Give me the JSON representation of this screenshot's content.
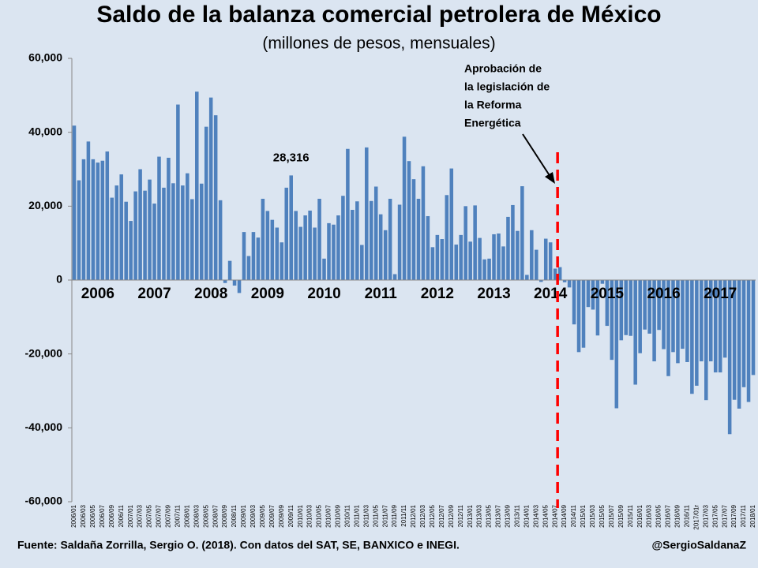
{
  "chart_data": {
    "type": "bar",
    "title": "Saldo de la balanza comercial petrolera de México",
    "subtitle": "(millones de pesos, mensuales)",
    "categories": [
      "2006/01",
      null,
      "2006/03",
      null,
      "2006/05",
      null,
      "2006/07",
      null,
      "2006/09",
      null,
      "2006/11",
      null,
      "2007/01",
      null,
      "2007/03",
      null,
      "2007/05",
      null,
      "2007/07",
      null,
      "2007/09",
      null,
      "2007/11",
      null,
      "2008/01",
      null,
      "2008/03",
      null,
      "2008/05",
      null,
      "2008/07",
      null,
      "2008/09",
      null,
      "2008/11",
      null,
      "2009/01",
      null,
      "2009/03",
      null,
      "2009/05",
      null,
      "2009/07",
      null,
      "2009/09",
      null,
      "2009/11",
      null,
      "2010/01",
      null,
      "2010/03",
      null,
      "2010/05",
      null,
      "2010/07",
      null,
      "2010/09",
      null,
      "2010/11",
      null,
      "2011/01",
      null,
      "2011/03",
      null,
      "2011/05",
      null,
      "2011/07",
      null,
      "2011/09",
      null,
      "2011/11",
      null,
      "2012/01",
      null,
      "2012/03",
      null,
      "2012/05",
      null,
      "2012/07",
      null,
      "2012/09",
      null,
      "2012/11",
      null,
      "2013/01",
      null,
      "2013/03",
      null,
      "2013/05",
      null,
      "2013/07",
      null,
      "2013/09",
      null,
      "2013/11",
      null,
      "2014/01",
      null,
      "2014/03",
      null,
      "2014/05",
      null,
      "2014/07",
      null,
      "2014/09",
      null,
      "2014/11",
      null,
      "2015/01",
      null,
      "2015/03",
      null,
      "2015/05",
      null,
      "2015/07",
      null,
      "2015/09",
      null,
      "2015/11",
      null,
      "2016/01",
      null,
      "2016/03",
      null,
      "2016/05",
      null,
      "2016/07",
      null,
      "2016/09",
      null,
      "2016/11",
      null,
      "2017/01r",
      null,
      "2017/03",
      null,
      "2017/05",
      null,
      "2017/07",
      null,
      "2017/09",
      null,
      "2017/11",
      null,
      "2018/01"
    ],
    "values": [
      41800,
      27000,
      32700,
      37500,
      32700,
      31800,
      32300,
      34800,
      22300,
      25600,
      28600,
      21200,
      16000,
      24000,
      30000,
      24200,
      27200,
      20700,
      33400,
      25000,
      33100,
      26200,
      47500,
      25600,
      28900,
      21900,
      51000,
      26100,
      41500,
      49400,
      44600,
      21600,
      -800,
      5200,
      -1500,
      -3500,
      13000,
      6500,
      13000,
      11500,
      22000,
      18700,
      16300,
      14200,
      10200,
      25000,
      28316,
      18700,
      14400,
      17500,
      18800,
      14200,
      22000,
      5800,
      15400,
      15000,
      17500,
      22800,
      35500,
      19000,
      21300,
      9500,
      35900,
      21400,
      25300,
      17800,
      13500,
      22000,
      1600,
      20400,
      38800,
      32200,
      27300,
      22000,
      30800,
      17300,
      8900,
      12200,
      11100,
      23000,
      30200,
      9600,
      12200,
      20000,
      10400,
      20200,
      11400,
      5600,
      5800,
      12400,
      12600,
      9100,
      17100,
      20300,
      13300,
      25400,
      1400,
      13500,
      8200,
      -500,
      11200,
      10200,
      3100,
      3500,
      -600,
      -2000,
      -12000,
      -19500,
      -18300,
      -7300,
      -8000,
      -15000,
      -1000,
      -12400,
      -21600,
      -34700,
      -16300,
      -14900,
      -15100,
      -28300,
      -19800,
      -13400,
      -14500,
      -22000,
      -13500,
      -18700,
      -26000,
      -19500,
      -22500,
      -18600,
      -22200,
      -30800,
      -28600,
      -22000,
      -32500,
      -22000,
      -25000,
      -25000,
      -21000,
      -41700,
      -32400,
      -34800,
      -29000,
      -33000,
      -25700
    ],
    "color": "#4f81bd",
    "data_label": {
      "index": 46,
      "label": "28,316"
    },
    "year_labels": [
      "2006",
      "2007",
      "2008",
      "2009",
      "2010",
      "2011",
      "2012",
      "2013",
      "2014",
      "2015",
      "2016",
      "2017"
    ],
    "event_line": {
      "category_index": 103,
      "color": "#ff0000"
    },
    "annotation": [
      "Aprobación de",
      "la legislación de",
      "la Reforma",
      "Energética"
    ],
    "ylim": [
      -60000,
      60000
    ],
    "yticks": [
      {
        "value": -60000,
        "label": "-60,000"
      },
      {
        "value": -40000,
        "label": "-40,000"
      },
      {
        "value": -20000,
        "label": "-20,000"
      },
      0,
      {
        "value": 20000,
        "label": "20,000"
      },
      {
        "value": 40000,
        "label": "40,000"
      },
      {
        "value": 60000,
        "label": "60,000"
      }
    ],
    "source": "Fuente: Saldaña Zorrilla, Sergio O. (2018). Con datos del SAT, SE, BANXICO e INEGI.",
    "credit": "@SergioSaldanaZ"
  }
}
